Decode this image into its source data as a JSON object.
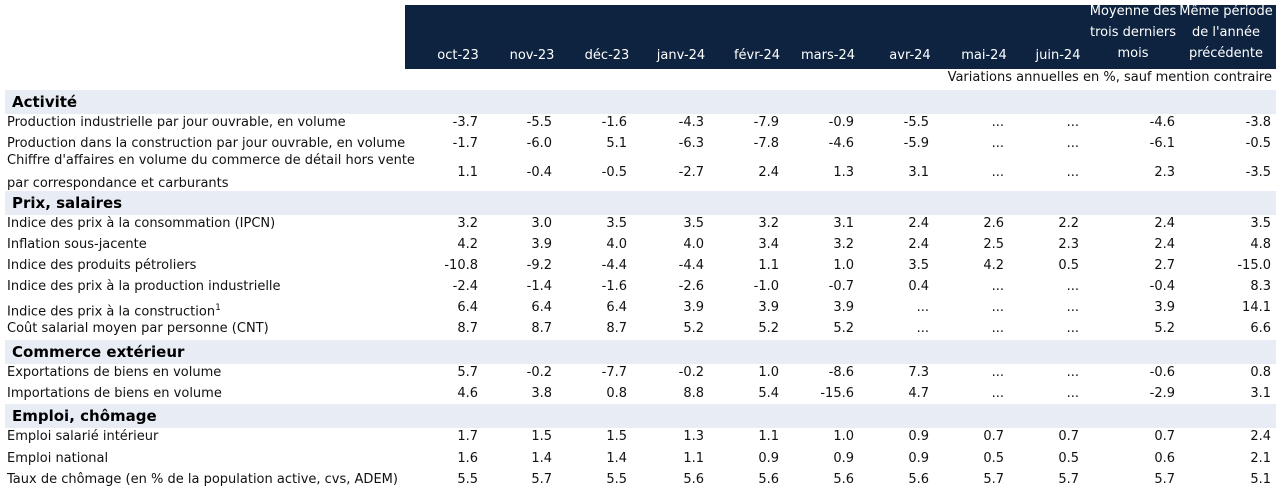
{
  "columns": [
    {
      "lines": [
        "oct-23"
      ]
    },
    {
      "lines": [
        "nov-23"
      ]
    },
    {
      "lines": [
        "déc-23"
      ]
    },
    {
      "lines": [
        "janv-24"
      ]
    },
    {
      "lines": [
        "févr-24"
      ]
    },
    {
      "lines": [
        "mars-24"
      ]
    },
    {
      "lines": [
        "avr-24"
      ]
    },
    {
      "lines": [
        "mai-24"
      ]
    },
    {
      "lines": [
        "juin-24"
      ]
    },
    {
      "lines": [
        "Moyenne des",
        "trois derniers",
        "mois"
      ]
    },
    {
      "lines": [
        "Même période",
        "de l'année",
        "précédente"
      ]
    }
  ],
  "units_note": "Variations annuelles en %, sauf mention contraire",
  "sections": [
    {
      "title": "Activité",
      "rows": [
        {
          "label": [
            "Production industrielle par jour ouvrable, en volume"
          ],
          "values": [
            "-3.7",
            "-5.5",
            "-1.6",
            "-4.3",
            "-7.9",
            "-0.9",
            "-5.5",
            "...",
            "...",
            "-4.6",
            "-3.8"
          ]
        },
        {
          "label": [
            "Production dans la construction par jour ouvrable, en volume"
          ],
          "values": [
            "-1.7",
            "-6.0",
            "5.1",
            "-6.3",
            "-7.8",
            "-4.6",
            "-5.9",
            "...",
            "...",
            "-6.1",
            "-0.5"
          ]
        },
        {
          "label": [
            "Chiffre d'affaires en volume du commerce de détail hors vente",
            "par correspondance et carburants"
          ],
          "values": [
            "1.1",
            "-0.4",
            "-0.5",
            "-2.7",
            "2.4",
            "1.3",
            "3.1",
            "...",
            "...",
            "2.3",
            "-3.5"
          ]
        }
      ]
    },
    {
      "title": "Prix, salaires",
      "rows": [
        {
          "label": [
            "Indice des prix à la consommation (IPCN)"
          ],
          "values": [
            "3.2",
            "3.0",
            "3.5",
            "3.5",
            "3.2",
            "3.1",
            "2.4",
            "2.6",
            "2.2",
            "2.4",
            "3.5"
          ]
        },
        {
          "label": [
            "Inflation sous-jacente"
          ],
          "values": [
            "4.2",
            "3.9",
            "4.0",
            "4.0",
            "3.4",
            "3.2",
            "2.4",
            "2.5",
            "2.3",
            "2.4",
            "4.8"
          ]
        },
        {
          "label": [
            "Indice des produits pétroliers"
          ],
          "values": [
            "-10.8",
            "-9.2",
            "-4.4",
            "-4.4",
            "1.1",
            "1.0",
            "3.5",
            "4.2",
            "0.5",
            "2.7",
            "-15.0"
          ]
        },
        {
          "label": [
            "Indice des prix à la production industrielle"
          ],
          "values": [
            "-2.4",
            "-1.4",
            "-1.6",
            "-2.6",
            "-1.0",
            "-0.7",
            "0.4",
            "...",
            "...",
            "-0.4",
            "8.3"
          ]
        },
        {
          "label": [
            "Indice des prix à la construction"
          ],
          "sup": "1",
          "values": [
            "6.4",
            "6.4",
            "6.4",
            "3.9",
            "3.9",
            "3.9",
            "...",
            "...",
            "...",
            "3.9",
            "14.1"
          ]
        },
        {
          "label": [
            "Coût salarial moyen par personne (CNT)"
          ],
          "values": [
            "8.7",
            "8.7",
            "8.7",
            "5.2",
            "5.2",
            "5.2",
            "...",
            "...",
            "...",
            "5.2",
            "6.6"
          ]
        }
      ]
    },
    {
      "title": "Commerce extérieur",
      "rows": [
        {
          "label": [
            "Exportations de biens en volume"
          ],
          "values": [
            "5.7",
            "-0.2",
            "-7.7",
            "-0.2",
            "1.0",
            "-8.6",
            "7.3",
            "...",
            "...",
            "-0.6",
            "0.8"
          ]
        },
        {
          "label": [
            "Importations de biens en volume"
          ],
          "values": [
            "4.6",
            "3.8",
            "0.8",
            "8.8",
            "5.4",
            "-15.6",
            "4.7",
            "...",
            "...",
            "-2.9",
            "3.1"
          ]
        }
      ]
    },
    {
      "title": "Emploi, chômage",
      "rows": [
        {
          "label": [
            "Emploi salarié intérieur"
          ],
          "values": [
            "1.7",
            "1.5",
            "1.5",
            "1.3",
            "1.1",
            "1.0",
            "0.9",
            "0.7",
            "0.7",
            "0.7",
            "2.4"
          ]
        },
        {
          "label": [
            "Emploi national"
          ],
          "values": [
            "1.6",
            "1.4",
            "1.4",
            "1.1",
            "0.9",
            "0.9",
            "0.9",
            "0.5",
            "0.5",
            "0.6",
            "2.1"
          ]
        },
        {
          "label": [
            "Taux de chômage (en % de la population active, cvs, ADEM)"
          ],
          "values": [
            "5.5",
            "5.7",
            "5.5",
            "5.6",
            "5.6",
            "5.6",
            "5.6",
            "5.7",
            "5.7",
            "5.7",
            "5.1"
          ]
        }
      ]
    }
  ]
}
